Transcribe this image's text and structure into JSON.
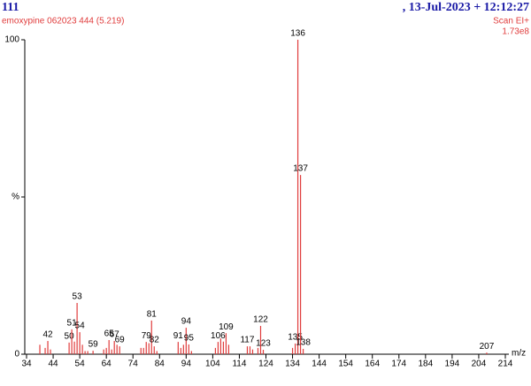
{
  "header": {
    "left_title": "111",
    "sample": "emoxypine 062023 444 (5.219)",
    "right_title": ",  13-Jul-2023 + 12:12:27",
    "scan": "Scan EI+",
    "intensity": "1.73e8"
  },
  "chart_data": {
    "type": "stem",
    "x_label": "m/z",
    "color": "#e03c3c",
    "xlim": [
      34,
      214
    ],
    "xticks": [
      34,
      44,
      54,
      64,
      74,
      84,
      94,
      104,
      114,
      124,
      134,
      144,
      154,
      164,
      174,
      184,
      194,
      204,
      214
    ],
    "ylim": [
      0,
      100
    ],
    "yticks": [
      0,
      {
        "value": 50,
        "label": "%"
      },
      100
    ],
    "peaks": {
      "x": [
        42,
        50,
        51,
        53,
        54,
        59,
        65,
        67,
        69,
        79,
        81,
        82,
        91,
        94,
        95,
        106,
        109,
        117,
        122,
        123,
        135,
        136,
        137,
        138,
        207
      ],
      "values": [
        4.2,
        3.7,
        7.9,
        16.3,
        7,
        1.1,
        4.5,
        4.2,
        2.5,
        3.9,
        10.7,
        2.5,
        3.9,
        8.4,
        3.1,
        3.9,
        6.7,
        2.5,
        9,
        1.4,
        3.4,
        100,
        57,
        1.7,
        0.5
      ]
    },
    "minor_peaks": {
      "x": [
        39,
        41,
        43,
        52,
        55,
        56,
        57,
        63,
        64,
        66,
        68,
        77,
        78,
        80,
        83,
        92,
        93,
        96,
        105,
        107,
        108,
        110,
        118,
        119,
        121,
        134
      ],
      "values": [
        3,
        2,
        1.5,
        4,
        3,
        1,
        1,
        1.5,
        2,
        1.5,
        3,
        2,
        2,
        3.5,
        1,
        2,
        3,
        1,
        2,
        5,
        4,
        3,
        2.5,
        1.5,
        2,
        2
      ]
    }
  }
}
